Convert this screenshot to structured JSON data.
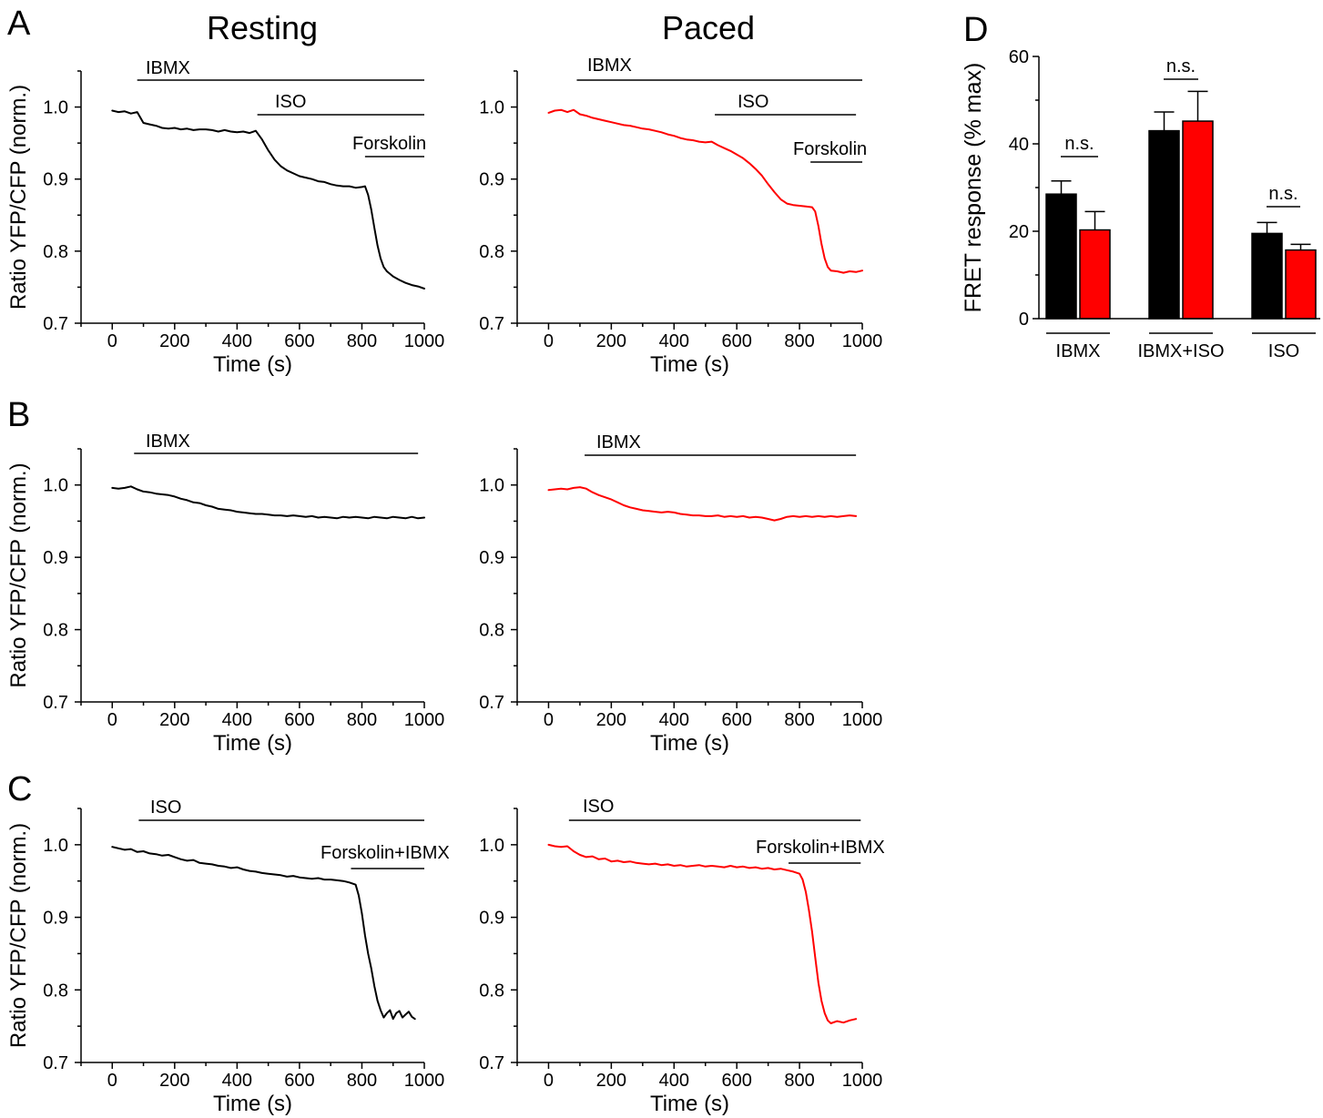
{
  "panel_labels": {
    "A": "A",
    "B": "B",
    "C": "C",
    "D": "D"
  },
  "column_titles": {
    "resting": "Resting",
    "paced": "Paced"
  },
  "chart_data": [
    {
      "type": "line",
      "xlabel": "Time (s)",
      "ylabel": "Ratio YFP/CFP (norm.)",
      "xlim": [
        -100,
        1000
      ],
      "ylim": [
        0.7,
        1.05
      ],
      "xticks": [
        0,
        200,
        400,
        600,
        800,
        1000
      ],
      "yticks": [
        0.7,
        0.8,
        0.9,
        1.0
      ],
      "ytick_labels": [
        "0.7",
        "0.8",
        "0.9",
        "1.0"
      ],
      "grid": false,
      "series": [
        {
          "color": "#000000",
          "x": [
            0,
            20,
            40,
            60,
            80,
            100,
            120,
            140,
            160,
            180,
            200,
            220,
            240,
            260,
            280,
            300,
            320,
            340,
            360,
            380,
            400,
            420,
            440,
            460,
            480,
            500,
            520,
            540,
            560,
            580,
            600,
            620,
            640,
            660,
            680,
            700,
            720,
            740,
            760,
            780,
            800,
            810,
            820,
            830,
            840,
            850,
            860,
            870,
            880,
            900,
            920,
            940,
            960,
            980,
            1000
          ],
          "y": [
            0.995,
            0.993,
            0.994,
            0.991,
            0.993,
            0.978,
            0.976,
            0.974,
            0.971,
            0.97,
            0.971,
            0.969,
            0.97,
            0.968,
            0.969,
            0.969,
            0.968,
            0.966,
            0.968,
            0.966,
            0.965,
            0.966,
            0.964,
            0.967,
            0.955,
            0.94,
            0.927,
            0.918,
            0.912,
            0.908,
            0.904,
            0.902,
            0.9,
            0.897,
            0.896,
            0.893,
            0.891,
            0.89,
            0.89,
            0.888,
            0.889,
            0.89,
            0.878,
            0.858,
            0.832,
            0.808,
            0.79,
            0.778,
            0.772,
            0.765,
            0.76,
            0.756,
            0.753,
            0.751,
            0.748
          ]
        }
      ],
      "annotations": [
        {
          "label": "IBMX",
          "start": 80,
          "end": 1000
        },
        {
          "label": "ISO",
          "start": 465,
          "end": 1000
        },
        {
          "label": "Forskolin",
          "start": 810,
          "end": 1000
        }
      ]
    },
    {
      "type": "line",
      "xlabel": "Time (s)",
      "ylabel": "",
      "xlim": [
        -100,
        1000
      ],
      "ylim": [
        0.7,
        1.05
      ],
      "xticks": [
        0,
        200,
        400,
        600,
        800,
        1000
      ],
      "yticks": [
        0.7,
        0.8,
        0.9,
        1.0
      ],
      "ytick_labels": [
        "0.7",
        "0.8",
        "0.9",
        "1.0"
      ],
      "grid": false,
      "series": [
        {
          "color": "#ff0000",
          "x": [
            0,
            20,
            40,
            60,
            80,
            100,
            120,
            140,
            160,
            180,
            200,
            220,
            240,
            260,
            280,
            300,
            320,
            340,
            360,
            380,
            400,
            420,
            440,
            460,
            480,
            500,
            520,
            540,
            560,
            580,
            600,
            620,
            640,
            660,
            680,
            700,
            720,
            740,
            760,
            780,
            800,
            820,
            840,
            850,
            860,
            870,
            880,
            890,
            900,
            920,
            940,
            960,
            980,
            1000
          ],
          "y": [
            0.992,
            0.995,
            0.996,
            0.993,
            0.996,
            0.99,
            0.988,
            0.985,
            0.983,
            0.981,
            0.979,
            0.977,
            0.975,
            0.974,
            0.972,
            0.97,
            0.969,
            0.967,
            0.965,
            0.962,
            0.96,
            0.957,
            0.955,
            0.954,
            0.952,
            0.951,
            0.952,
            0.947,
            0.943,
            0.939,
            0.934,
            0.929,
            0.922,
            0.914,
            0.905,
            0.893,
            0.882,
            0.872,
            0.866,
            0.864,
            0.863,
            0.862,
            0.861,
            0.855,
            0.835,
            0.81,
            0.79,
            0.778,
            0.773,
            0.772,
            0.77,
            0.772,
            0.771,
            0.773
          ]
        }
      ],
      "annotations": [
        {
          "label": "IBMX",
          "start": 90,
          "end": 1000
        },
        {
          "label": "ISO",
          "start": 530,
          "end": 980
        },
        {
          "label": "Forskolin",
          "start": 835,
          "end": 1000
        }
      ]
    },
    {
      "type": "line",
      "xlabel": "Time (s)",
      "ylabel": "Ratio YFP/CFP (norm.)",
      "xlim": [
        -100,
        1000
      ],
      "ylim": [
        0.7,
        1.05
      ],
      "xticks": [
        0,
        200,
        400,
        600,
        800,
        1000
      ],
      "yticks": [
        0.7,
        0.8,
        0.9,
        1.0
      ],
      "ytick_labels": [
        "0.7",
        "0.8",
        "0.9",
        "1.0"
      ],
      "grid": false,
      "series": [
        {
          "color": "#000000",
          "x": [
            0,
            20,
            40,
            60,
            80,
            100,
            120,
            140,
            160,
            180,
            200,
            220,
            240,
            260,
            280,
            300,
            320,
            340,
            360,
            380,
            400,
            420,
            440,
            460,
            480,
            500,
            520,
            540,
            560,
            580,
            600,
            620,
            640,
            660,
            680,
            700,
            720,
            740,
            760,
            780,
            800,
            820,
            840,
            860,
            880,
            900,
            920,
            940,
            960,
            980,
            1000
          ],
          "y": [
            0.996,
            0.995,
            0.996,
            0.998,
            0.994,
            0.991,
            0.99,
            0.988,
            0.987,
            0.986,
            0.984,
            0.981,
            0.979,
            0.976,
            0.975,
            0.972,
            0.97,
            0.967,
            0.966,
            0.965,
            0.963,
            0.962,
            0.961,
            0.96,
            0.96,
            0.959,
            0.958,
            0.958,
            0.957,
            0.958,
            0.957,
            0.956,
            0.957,
            0.955,
            0.956,
            0.955,
            0.954,
            0.956,
            0.955,
            0.956,
            0.955,
            0.954,
            0.956,
            0.955,
            0.954,
            0.956,
            0.955,
            0.954,
            0.956,
            0.954,
            0.955
          ]
        }
      ],
      "annotations": [
        {
          "label": "IBMX",
          "start": 70,
          "end": 980
        }
      ]
    },
    {
      "type": "line",
      "xlabel": "Time (s)",
      "ylabel": "",
      "xlim": [
        -100,
        1000
      ],
      "ylim": [
        0.7,
        1.05
      ],
      "xticks": [
        0,
        200,
        400,
        600,
        800,
        1000
      ],
      "yticks": [
        0.7,
        0.8,
        0.9,
        1.0
      ],
      "ytick_labels": [
        "0.7",
        "0.8",
        "0.9",
        "1.0"
      ],
      "grid": false,
      "series": [
        {
          "color": "#ff0000",
          "x": [
            0,
            20,
            40,
            60,
            80,
            100,
            120,
            140,
            160,
            180,
            200,
            220,
            240,
            260,
            280,
            300,
            320,
            340,
            360,
            380,
            400,
            420,
            440,
            460,
            480,
            500,
            520,
            540,
            560,
            580,
            600,
            620,
            640,
            660,
            680,
            700,
            720,
            740,
            760,
            780,
            800,
            820,
            840,
            860,
            880,
            900,
            920,
            940,
            960,
            980
          ],
          "y": [
            0.993,
            0.994,
            0.995,
            0.994,
            0.996,
            0.997,
            0.995,
            0.99,
            0.986,
            0.983,
            0.98,
            0.976,
            0.972,
            0.969,
            0.967,
            0.965,
            0.964,
            0.963,
            0.962,
            0.963,
            0.962,
            0.96,
            0.959,
            0.958,
            0.958,
            0.957,
            0.957,
            0.958,
            0.956,
            0.957,
            0.956,
            0.957,
            0.955,
            0.956,
            0.955,
            0.953,
            0.951,
            0.953,
            0.956,
            0.957,
            0.956,
            0.957,
            0.956,
            0.957,
            0.956,
            0.957,
            0.956,
            0.957,
            0.958,
            0.957
          ]
        }
      ],
      "annotations": [
        {
          "label": "IBMX",
          "start": 115,
          "end": 980
        }
      ]
    },
    {
      "type": "line",
      "xlabel": "Time (s)",
      "ylabel": "Ratio YFP/CFP (norm.)",
      "xlim": [
        -100,
        1000
      ],
      "ylim": [
        0.7,
        1.05
      ],
      "xticks": [
        0,
        200,
        400,
        600,
        800,
        1000
      ],
      "yticks": [
        0.7,
        0.8,
        0.9,
        1.0
      ],
      "ytick_labels": [
        "0.7",
        "0.8",
        "0.9",
        "1.0"
      ],
      "grid": false,
      "series": [
        {
          "color": "#000000",
          "x": [
            0,
            20,
            40,
            60,
            80,
            100,
            120,
            140,
            160,
            180,
            200,
            220,
            240,
            260,
            280,
            300,
            320,
            340,
            360,
            380,
            400,
            420,
            440,
            460,
            480,
            500,
            520,
            540,
            560,
            580,
            600,
            620,
            640,
            660,
            680,
            700,
            720,
            740,
            760,
            780,
            790,
            800,
            810,
            820,
            830,
            840,
            850,
            860,
            870,
            880,
            890,
            900,
            910,
            920,
            930,
            940,
            950,
            960,
            970
          ],
          "y": [
            0.997,
            0.995,
            0.993,
            0.994,
            0.99,
            0.991,
            0.988,
            0.987,
            0.985,
            0.986,
            0.983,
            0.98,
            0.978,
            0.979,
            0.975,
            0.974,
            0.973,
            0.971,
            0.97,
            0.968,
            0.969,
            0.966,
            0.964,
            0.963,
            0.961,
            0.96,
            0.959,
            0.958,
            0.956,
            0.957,
            0.955,
            0.954,
            0.953,
            0.954,
            0.952,
            0.952,
            0.951,
            0.95,
            0.948,
            0.945,
            0.93,
            0.905,
            0.875,
            0.85,
            0.83,
            0.805,
            0.785,
            0.772,
            0.762,
            0.768,
            0.772,
            0.76,
            0.768,
            0.771,
            0.762,
            0.766,
            0.77,
            0.763,
            0.76
          ]
        }
      ],
      "annotations": [
        {
          "label": "ISO",
          "start": 85,
          "end": 1000
        },
        {
          "label": "Forskolin+IBMX",
          "start": 765,
          "end": 1000
        }
      ]
    },
    {
      "type": "line",
      "xlabel": "Time (s)",
      "ylabel": "",
      "xlim": [
        -100,
        1000
      ],
      "ylim": [
        0.7,
        1.05
      ],
      "xticks": [
        0,
        200,
        400,
        600,
        800,
        1000
      ],
      "yticks": [
        0.7,
        0.8,
        0.9,
        1.0
      ],
      "ytick_labels": [
        "0.7",
        "0.8",
        "0.9",
        "1.0"
      ],
      "grid": false,
      "series": [
        {
          "color": "#ff0000",
          "x": [
            0,
            20,
            40,
            60,
            80,
            100,
            120,
            140,
            160,
            180,
            200,
            220,
            240,
            260,
            280,
            300,
            320,
            340,
            360,
            380,
            400,
            420,
            440,
            460,
            480,
            500,
            520,
            540,
            560,
            580,
            600,
            620,
            640,
            660,
            680,
            700,
            720,
            740,
            760,
            780,
            800,
            810,
            820,
            830,
            840,
            850,
            860,
            870,
            880,
            890,
            900,
            920,
            940,
            960,
            980
          ],
          "y": [
            1.0,
            0.998,
            0.997,
            0.998,
            0.991,
            0.986,
            0.983,
            0.984,
            0.98,
            0.981,
            0.977,
            0.978,
            0.976,
            0.977,
            0.975,
            0.974,
            0.973,
            0.974,
            0.972,
            0.973,
            0.971,
            0.972,
            0.97,
            0.971,
            0.972,
            0.97,
            0.971,
            0.97,
            0.969,
            0.971,
            0.969,
            0.97,
            0.968,
            0.969,
            0.967,
            0.968,
            0.966,
            0.967,
            0.965,
            0.963,
            0.96,
            0.952,
            0.935,
            0.91,
            0.88,
            0.845,
            0.81,
            0.785,
            0.768,
            0.758,
            0.754,
            0.757,
            0.755,
            0.758,
            0.76
          ]
        }
      ],
      "annotations": [
        {
          "label": "ISO",
          "start": 65,
          "end": 995
        },
        {
          "label": "Forskolin+IBMX",
          "start": 765,
          "end": 995
        }
      ]
    },
    {
      "type": "bar",
      "ylabel": "FRET response (% max)",
      "ylim": [
        0,
        60
      ],
      "yticks": [
        0,
        20,
        40,
        60
      ],
      "grid": false,
      "categories": [
        "IBMX",
        "IBMX+ISO",
        "ISO"
      ],
      "series": [
        {
          "color": "#000000",
          "values": [
            28.5,
            43.0,
            19.5
          ],
          "errors": [
            3.0,
            4.3,
            2.5
          ]
        },
        {
          "color": "#ff0000",
          "values": [
            20.3,
            45.2,
            15.7
          ],
          "errors": [
            4.2,
            6.8,
            1.3
          ]
        }
      ],
      "significance": [
        "n.s.",
        "n.s.",
        "n.s."
      ]
    }
  ]
}
